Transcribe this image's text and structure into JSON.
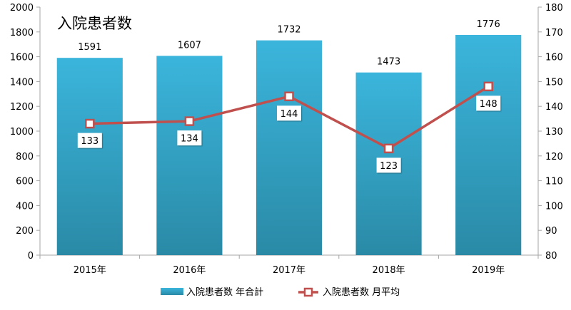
{
  "chart_data": {
    "type": "bar",
    "title": "入院患者数",
    "categories": [
      "2015年",
      "2016年",
      "2017年",
      "2018年",
      "2019年"
    ],
    "series": [
      {
        "name": "入院患者数 年合計",
        "type": "bar",
        "axis": "left",
        "values": [
          1591,
          1607,
          1732,
          1473,
          1776
        ]
      },
      {
        "name": "入院患者数 月平均",
        "type": "line",
        "axis": "right",
        "values": [
          133,
          134,
          144,
          123,
          148
        ]
      }
    ],
    "y_left": {
      "min": 0,
      "max": 2000,
      "step": 200
    },
    "y_right": {
      "min": 80,
      "max": 180,
      "step": 10
    },
    "legend": "bottom",
    "grid": false,
    "colors": {
      "bar_top": "#3bb5dc",
      "bar_bottom": "#2a8aa6",
      "line": "#c0504d",
      "axis": "#a6a6a6"
    }
  }
}
